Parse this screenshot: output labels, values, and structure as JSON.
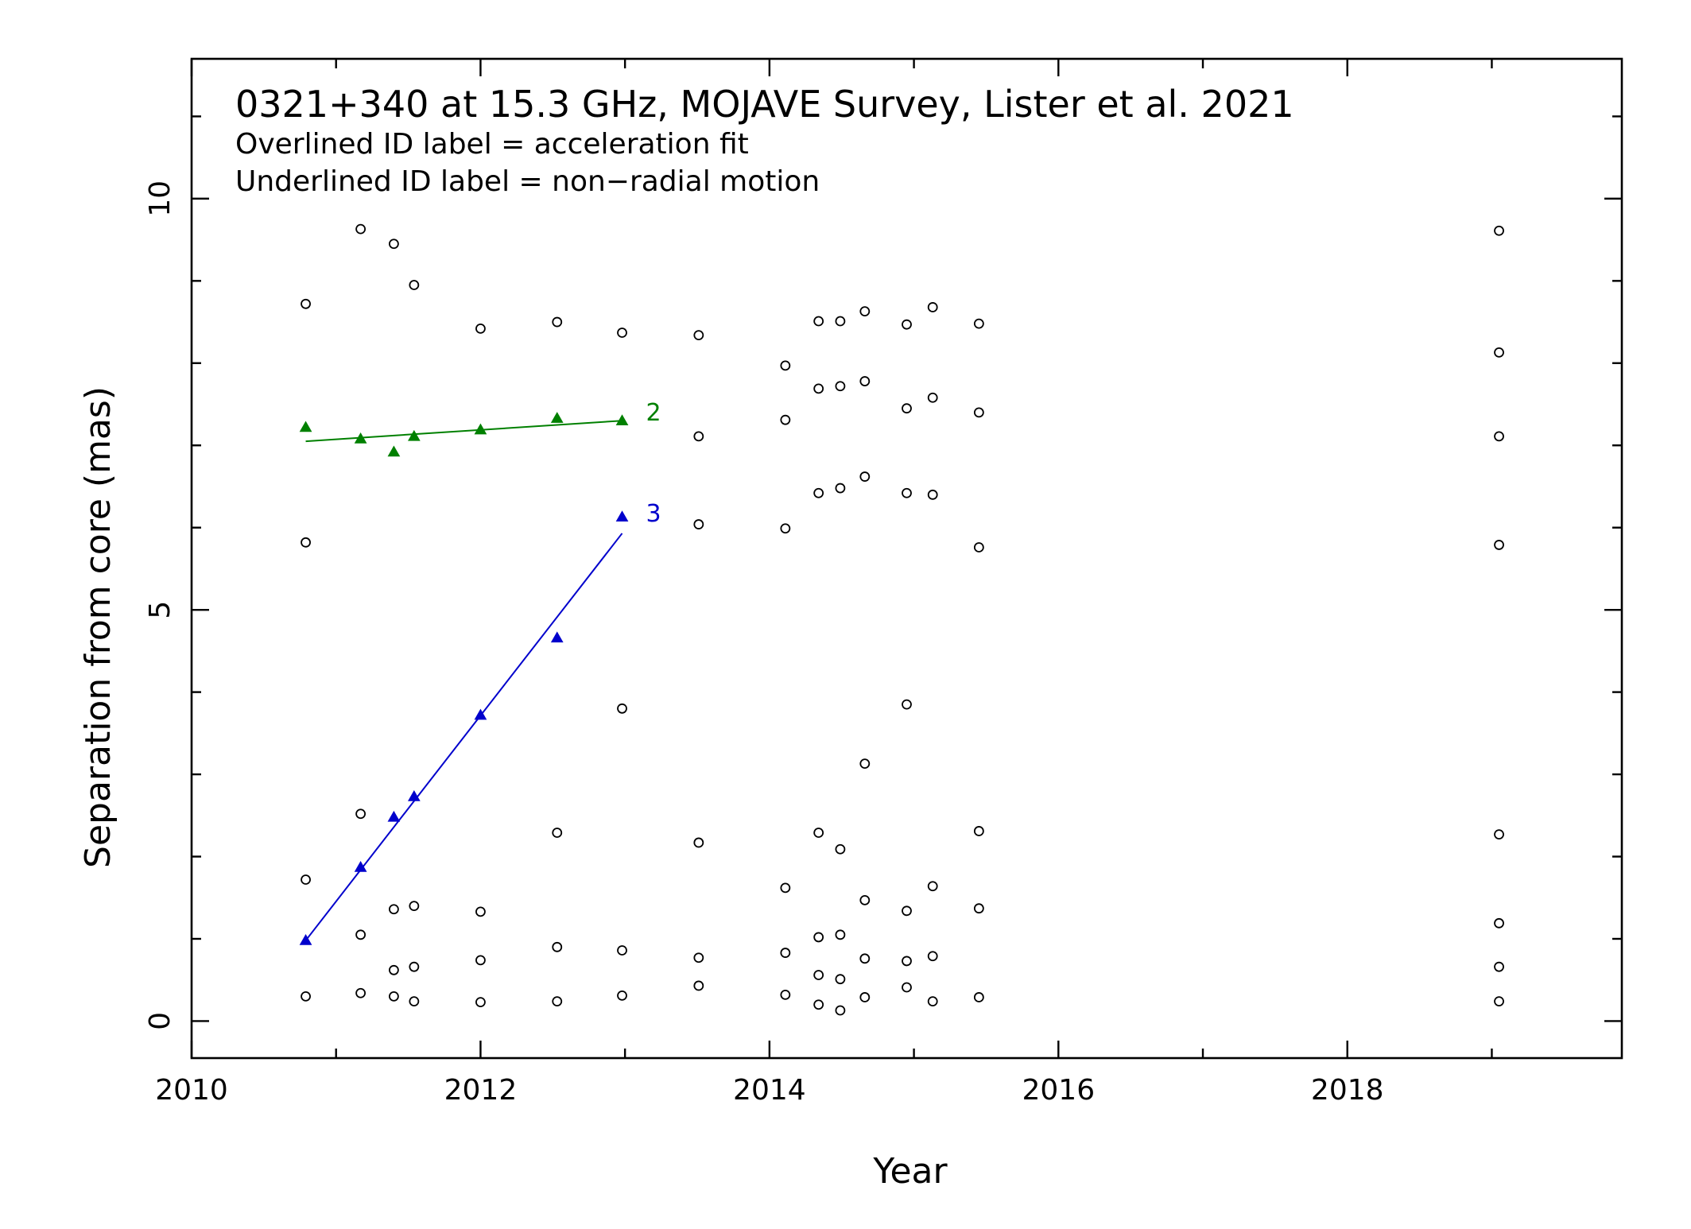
{
  "chart_data": {
    "type": "scatter",
    "title": "0321+340 at 15.3 GHz, MOJAVE Survey, Lister et al. 2021",
    "notes": [
      "Overlined ID label = acceleration fit",
      "Underlined ID label = non−radial motion"
    ],
    "xlabel": "Year",
    "ylabel": "Separation from core (mas)",
    "xlim": [
      2010.0,
      2019.9
    ],
    "ylim": [
      -0.45,
      11.7
    ],
    "xticks": [
      2010,
      2012,
      2014,
      2016,
      2018
    ],
    "xtick_labels": [
      "2010",
      "2012",
      "2014",
      "2016",
      "2018"
    ],
    "x_minor_step": 1,
    "yticks": [
      0,
      5,
      10
    ],
    "ytick_labels": [
      "0",
      "5",
      "10"
    ],
    "y_minor_step": 1,
    "grid": false,
    "observations": {
      "marker": "open-circle",
      "points": [
        [
          2010.79,
          8.72
        ],
        [
          2010.79,
          5.82
        ],
        [
          2010.79,
          1.72
        ],
        [
          2010.79,
          0.3
        ],
        [
          2011.17,
          9.63
        ],
        [
          2011.17,
          2.52
        ],
        [
          2011.17,
          1.05
        ],
        [
          2011.17,
          0.34
        ],
        [
          2011.4,
          9.45
        ],
        [
          2011.4,
          1.36
        ],
        [
          2011.4,
          0.62
        ],
        [
          2011.4,
          0.3
        ],
        [
          2011.54,
          8.95
        ],
        [
          2011.54,
          1.4
        ],
        [
          2011.54,
          0.66
        ],
        [
          2011.54,
          0.24
        ],
        [
          2012.0,
          8.42
        ],
        [
          2012.0,
          1.33
        ],
        [
          2012.0,
          0.74
        ],
        [
          2012.0,
          0.23
        ],
        [
          2012.53,
          8.5
        ],
        [
          2012.53,
          2.29
        ],
        [
          2012.53,
          0.9
        ],
        [
          2012.53,
          0.24
        ],
        [
          2012.98,
          8.37
        ],
        [
          2012.98,
          3.8
        ],
        [
          2012.98,
          0.86
        ],
        [
          2012.98,
          0.31
        ],
        [
          2013.51,
          8.34
        ],
        [
          2013.51,
          7.11
        ],
        [
          2013.51,
          6.04
        ],
        [
          2013.51,
          2.17
        ],
        [
          2013.51,
          0.77
        ],
        [
          2013.51,
          0.43
        ],
        [
          2014.11,
          7.97
        ],
        [
          2014.11,
          7.31
        ],
        [
          2014.11,
          5.99
        ],
        [
          2014.11,
          1.62
        ],
        [
          2014.11,
          0.83
        ],
        [
          2014.11,
          0.32
        ],
        [
          2014.34,
          8.51
        ],
        [
          2014.34,
          7.69
        ],
        [
          2014.34,
          6.42
        ],
        [
          2014.34,
          2.29
        ],
        [
          2014.34,
          1.02
        ],
        [
          2014.34,
          0.56
        ],
        [
          2014.34,
          0.2
        ],
        [
          2014.49,
          8.51
        ],
        [
          2014.49,
          7.72
        ],
        [
          2014.49,
          6.48
        ],
        [
          2014.49,
          2.09
        ],
        [
          2014.49,
          1.05
        ],
        [
          2014.49,
          0.51
        ],
        [
          2014.49,
          0.13
        ],
        [
          2014.66,
          8.63
        ],
        [
          2014.66,
          7.78
        ],
        [
          2014.66,
          6.62
        ],
        [
          2014.66,
          3.13
        ],
        [
          2014.66,
          1.47
        ],
        [
          2014.66,
          0.76
        ],
        [
          2014.66,
          0.29
        ],
        [
          2014.95,
          8.47
        ],
        [
          2014.95,
          7.45
        ],
        [
          2014.95,
          6.42
        ],
        [
          2014.95,
          3.85
        ],
        [
          2014.95,
          1.34
        ],
        [
          2014.95,
          0.73
        ],
        [
          2014.95,
          0.41
        ],
        [
          2015.13,
          8.68
        ],
        [
          2015.13,
          7.58
        ],
        [
          2015.13,
          6.4
        ],
        [
          2015.13,
          1.64
        ],
        [
          2015.13,
          0.79
        ],
        [
          2015.13,
          0.24
        ],
        [
          2015.45,
          8.48
        ],
        [
          2015.45,
          7.4
        ],
        [
          2015.45,
          5.76
        ],
        [
          2015.45,
          2.31
        ],
        [
          2015.45,
          1.37
        ],
        [
          2015.45,
          0.29
        ],
        [
          2019.05,
          9.61
        ],
        [
          2019.05,
          8.13
        ],
        [
          2019.05,
          7.11
        ],
        [
          2019.05,
          5.79
        ],
        [
          2019.05,
          2.27
        ],
        [
          2019.05,
          1.19
        ],
        [
          2019.05,
          0.66
        ],
        [
          2019.05,
          0.24
        ]
      ]
    },
    "series": [
      {
        "name": "2",
        "color": "#008000",
        "marker": "filled-triangle",
        "points": [
          [
            2010.79,
            7.22
          ],
          [
            2011.17,
            7.08
          ],
          [
            2011.4,
            6.92
          ],
          [
            2011.54,
            7.11
          ],
          [
            2012.0,
            7.19
          ],
          [
            2012.53,
            7.33
          ],
          [
            2012.98,
            7.3
          ]
        ],
        "fit": [
          [
            2010.79,
            7.05
          ],
          [
            2012.98,
            7.3
          ]
        ]
      },
      {
        "name": "3",
        "color": "#0000cc",
        "marker": "filled-triangle",
        "points": [
          [
            2010.79,
            0.98
          ],
          [
            2011.17,
            1.87
          ],
          [
            2011.4,
            2.48
          ],
          [
            2011.54,
            2.73
          ],
          [
            2012.0,
            3.72
          ],
          [
            2012.53,
            4.66
          ],
          [
            2012.98,
            6.13
          ]
        ],
        "fit": [
          [
            2010.79,
            0.98
          ],
          [
            2012.98,
            5.93
          ]
        ]
      }
    ]
  }
}
